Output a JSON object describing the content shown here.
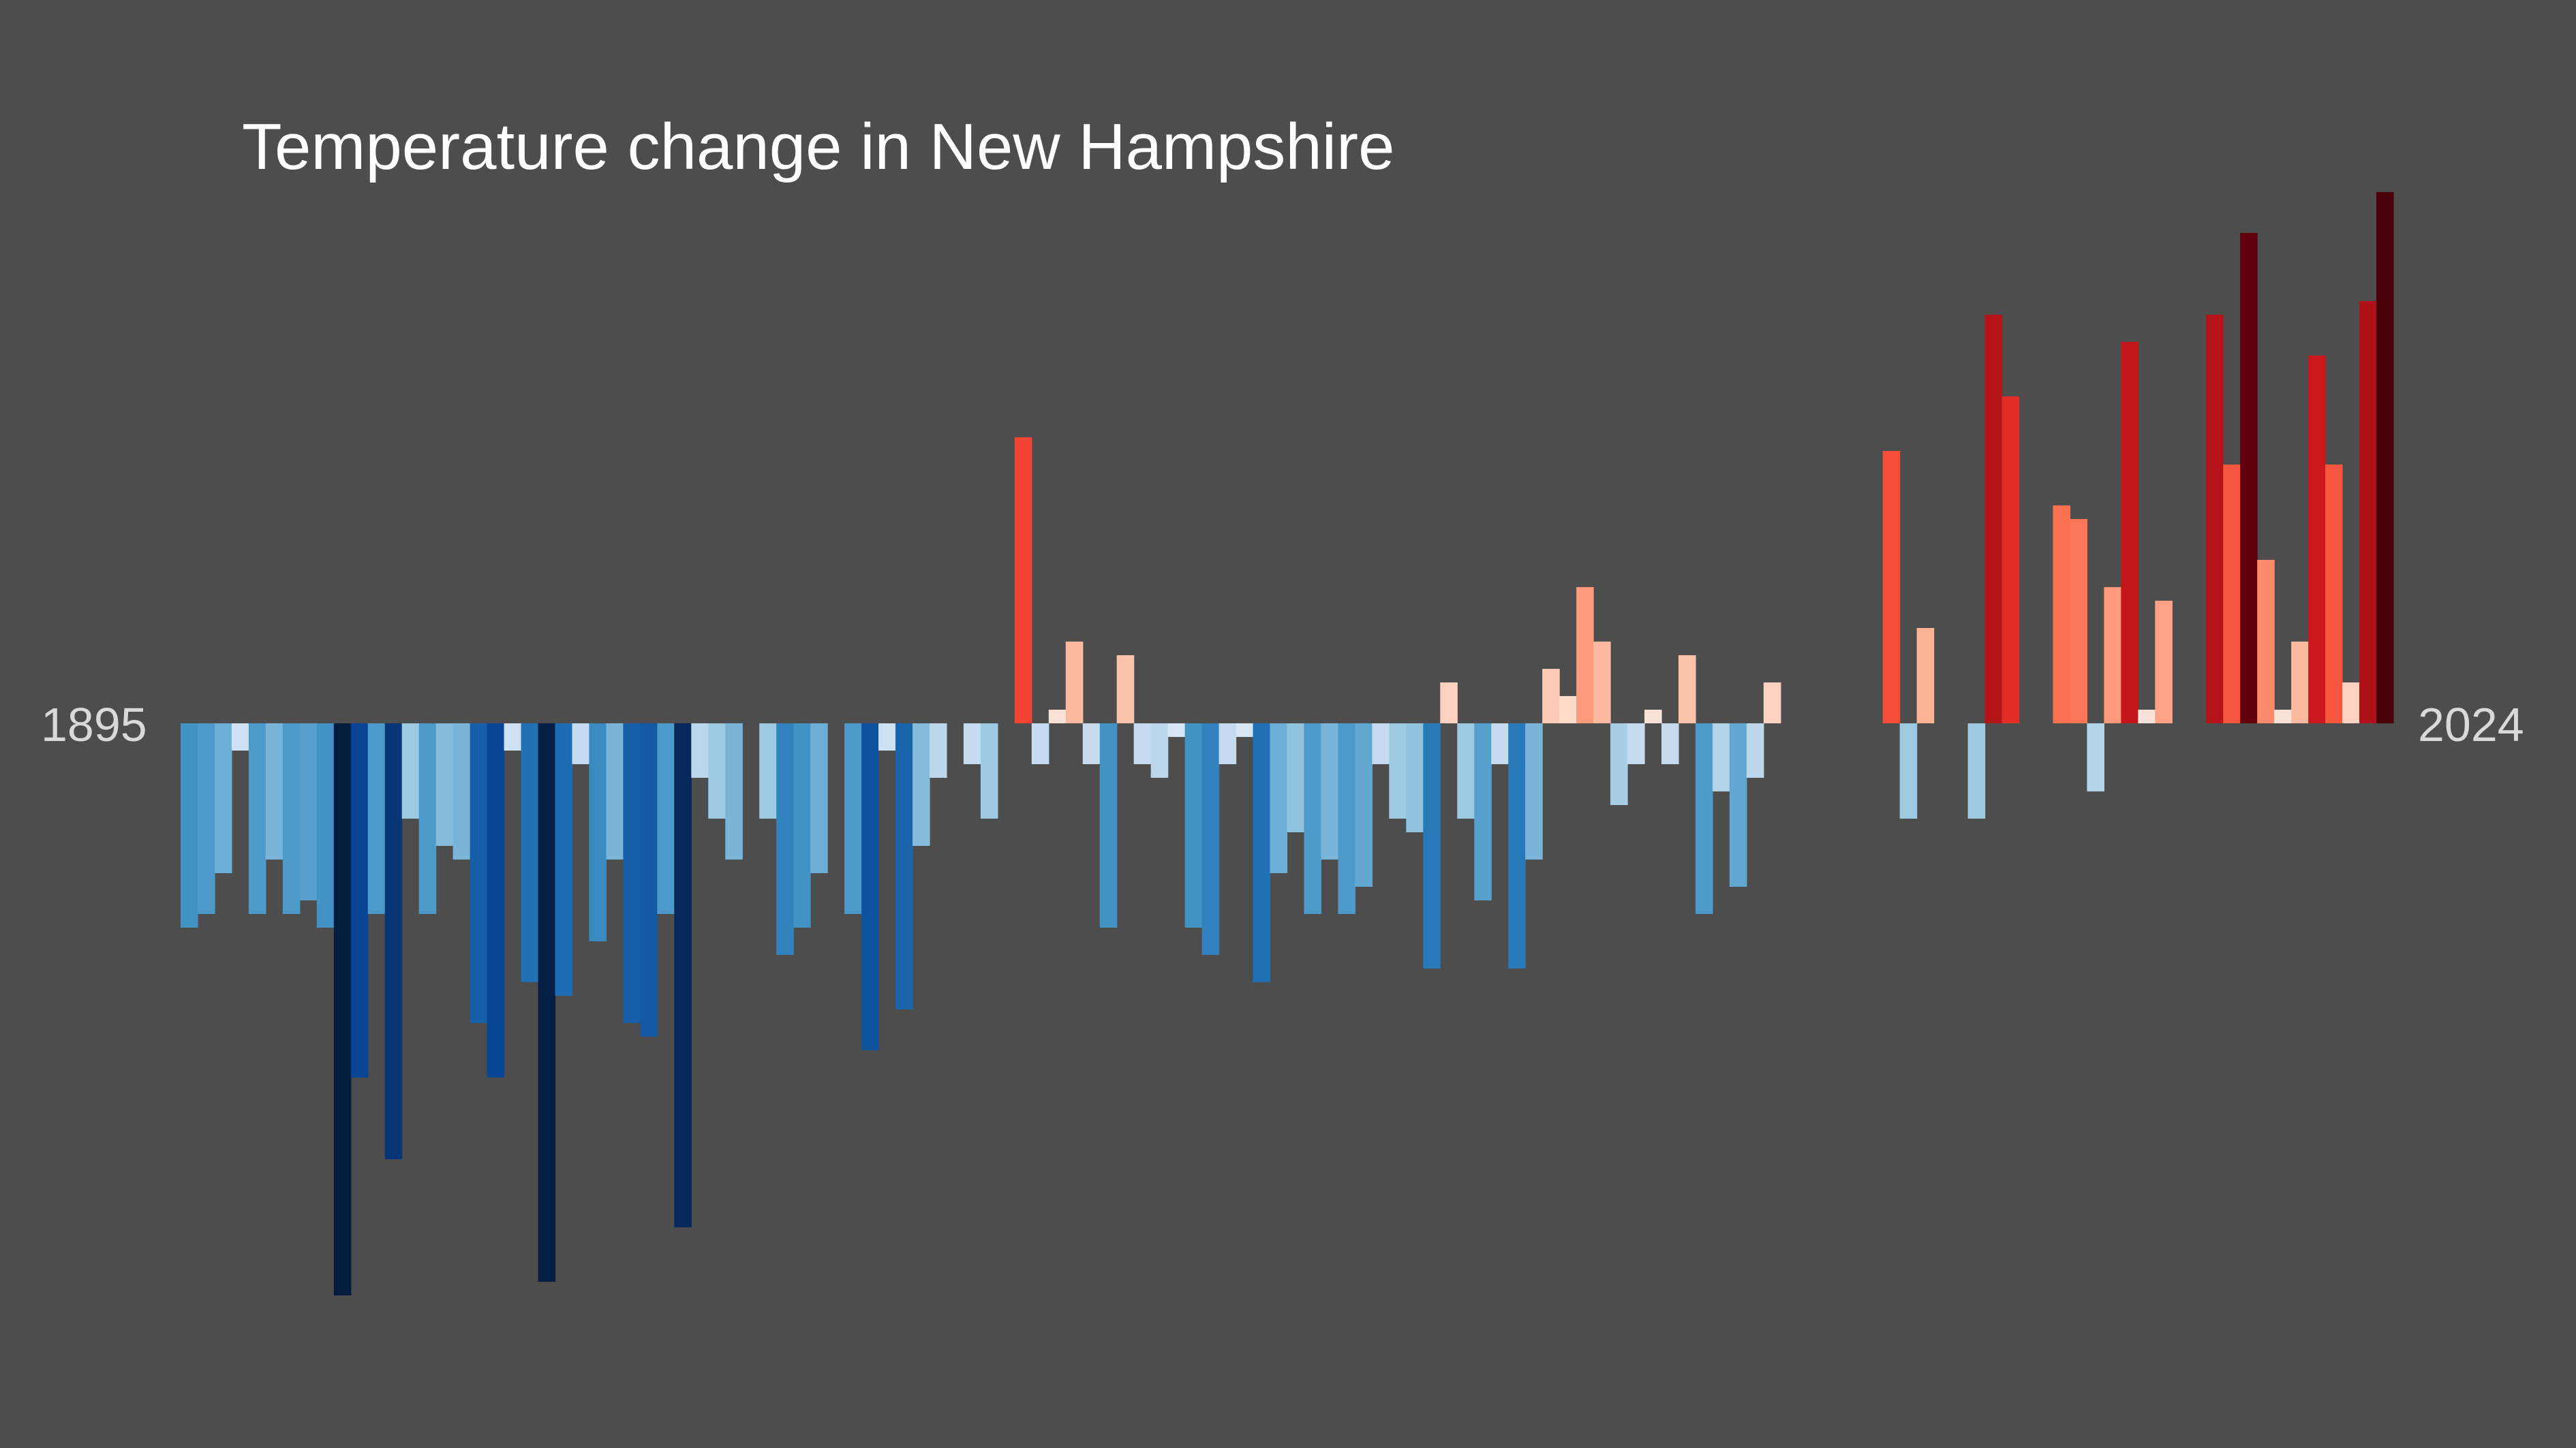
{
  "chart_data": {
    "type": "bar",
    "title": "Temperature change in New Hampshire",
    "start_year": "1895",
    "end_year": "2024",
    "axis_labels": {
      "left": "1895",
      "right": "2024"
    },
    "xlabel": "",
    "ylabel": "",
    "ylim": [
      -2.1,
      1.95
    ],
    "grid": false,
    "legend": "none",
    "background": "#4d4d4d",
    "colormap": "RdBu_r",
    "categories": [
      "1895",
      "1896",
      "1897",
      "1898",
      "1899",
      "1900",
      "1901",
      "1902",
      "1903",
      "1904",
      "1905",
      "1906",
      "1907",
      "1908",
      "1909",
      "1910",
      "1911",
      "1912",
      "1913",
      "1914",
      "1915",
      "1916",
      "1917",
      "1918",
      "1919",
      "1920",
      "1921",
      "1922",
      "1923",
      "1924",
      "1925",
      "1926",
      "1927",
      "1928",
      "1929",
      "1930",
      "1931",
      "1932",
      "1933",
      "1934",
      "1935",
      "1936",
      "1937",
      "1938",
      "1939",
      "1940",
      "1941",
      "1942",
      "1943",
      "1944",
      "1945",
      "1946",
      "1947",
      "1948",
      "1949",
      "1950",
      "1951",
      "1952",
      "1953",
      "1954",
      "1955",
      "1956",
      "1957",
      "1958",
      "1959",
      "1960",
      "1961",
      "1962",
      "1963",
      "1964",
      "1965",
      "1966",
      "1967",
      "1968",
      "1969",
      "1970",
      "1971",
      "1972",
      "1973",
      "1974",
      "1975",
      "1976",
      "1977",
      "1978",
      "1979",
      "1980",
      "1981",
      "1982",
      "1983",
      "1984",
      "1985",
      "1986",
      "1987",
      "1988",
      "1989",
      "1990",
      "1991",
      "1992",
      "1993",
      "1994",
      "1995",
      "1996",
      "1997",
      "1998",
      "1999",
      "2000",
      "2001",
      "2002",
      "2003",
      "2004",
      "2005",
      "2006",
      "2007",
      "2008",
      "2009",
      "2010",
      "2011",
      "2012",
      "2013",
      "2014",
      "2015",
      "2016",
      "2017",
      "2018",
      "2019",
      "2020",
      "2021",
      "2022",
      "2023",
      "2024"
    ],
    "values": [
      -0.75,
      -0.7,
      -0.55,
      -0.1,
      -0.7,
      -0.5,
      -0.7,
      -0.65,
      -0.75,
      -2.1,
      -1.3,
      -0.7,
      -1.6,
      -0.35,
      -0.7,
      -0.45,
      -0.5,
      -1.1,
      -1.3,
      -0.1,
      -0.95,
      -2.05,
      -1.0,
      -0.15,
      -0.8,
      -0.5,
      -1.1,
      -1.15,
      -0.7,
      -1.85,
      -0.2,
      -0.35,
      -0.5,
      0.0,
      -0.35,
      -0.85,
      -0.75,
      -0.55,
      0.0,
      -0.7,
      -1.2,
      -0.1,
      -1.05,
      -0.45,
      -0.2,
      0.0,
      -0.15,
      -0.35,
      0.0,
      1.05,
      -0.15,
      0.05,
      0.3,
      -0.15,
      -0.75,
      0.25,
      -0.15,
      -0.2,
      -0.05,
      -0.75,
      -0.85,
      -0.15,
      -0.05,
      -0.95,
      -0.55,
      -0.4,
      -0.7,
      -0.5,
      -0.7,
      -0.6,
      -0.15,
      -0.35,
      -0.4,
      -0.9,
      0.15,
      -0.35,
      -0.65,
      -0.15,
      -0.9,
      -0.5,
      0.2,
      0.1,
      0.5,
      0.3,
      -0.3,
      -0.15,
      0.05,
      -0.15,
      0.25,
      -0.7,
      -0.25,
      -0.6,
      -0.2,
      0.15,
      0.0,
      0.0,
      0.0,
      0.0,
      0.0,
      0.0,
      1.0,
      -0.35,
      0.35,
      0.0,
      0.0,
      -0.35,
      1.5,
      1.2,
      0.0,
      0.0,
      0.8,
      0.75,
      -0.25,
      0.5,
      1.4,
      0.05,
      0.45,
      0.0,
      0.0,
      1.5,
      0.95,
      1.8,
      0.6,
      0.05,
      0.3,
      1.35,
      0.95,
      0.15,
      1.55,
      1.95
    ]
  }
}
